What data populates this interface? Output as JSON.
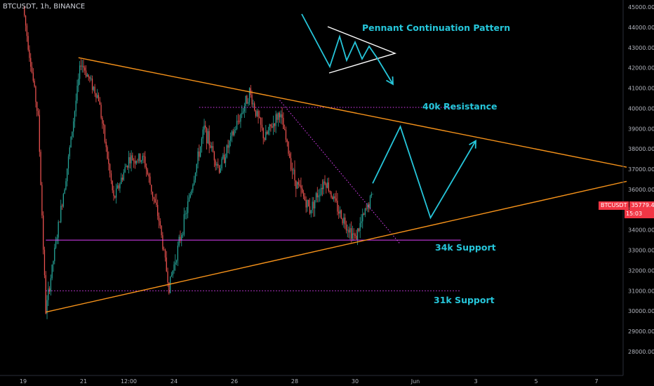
{
  "header": {
    "symbol_line": "BTCUSDT, 1h, BINANCE"
  },
  "price_tag": {
    "symbol": "BTCUSDT",
    "price": "35779.40",
    "countdown": "15:03"
  },
  "colors": {
    "background": "#000000",
    "up_candle": "#26a69a",
    "down_candle": "#ef5350",
    "trendline": "#f7931a",
    "resistance": "#e040fb",
    "projection": "#26c6da",
    "pattern_icon": "#ffffff",
    "annotation_text": "#26c6da"
  },
  "annotations": {
    "pennant": "Pennant Continuation Pattern",
    "resistance_40k": "40k Resistance",
    "support_34k": "34k Support",
    "support_31k": "31k Support"
  },
  "chart_data": {
    "type": "candlestick",
    "title": "",
    "symbol": "BTCUSDT",
    "interval": "1h",
    "exchange": "BINANCE",
    "last_price": 35779.4,
    "ylim": [
      28000,
      45400
    ],
    "y_ticks": [
      "45000.00",
      "44000.00",
      "43000.00",
      "42000.00",
      "41000.00",
      "40000.00",
      "39000.00",
      "38000.00",
      "37000.00",
      "36000.00",
      "35000.00",
      "34000.00",
      "33000.00",
      "32000.00",
      "31000.00",
      "30000.00",
      "29000.00",
      "28000.00"
    ],
    "x_ticks": [
      "19",
      "21",
      "12:00",
      "24",
      "26",
      "28",
      "30",
      "Jun",
      "3",
      "5",
      "7"
    ],
    "grid": false,
    "approx_path": [
      {
        "t": "2021-05-19 00:00",
        "price": 45000
      },
      {
        "t": "2021-05-19 12:00",
        "price": 39500
      },
      {
        "t": "2021-05-19 18:00",
        "price": 30000
      },
      {
        "t": "2021-05-20 12:00",
        "price": 37500
      },
      {
        "t": "2021-05-20 22:00",
        "price": 42300
      },
      {
        "t": "2021-05-21 12:00",
        "price": 40500
      },
      {
        "t": "2021-05-22 00:00",
        "price": 35500
      },
      {
        "t": "2021-05-22 12:00",
        "price": 37500
      },
      {
        "t": "2021-05-23 00:00",
        "price": 37500
      },
      {
        "t": "2021-05-23 12:00",
        "price": 34500
      },
      {
        "t": "2021-05-23 20:00",
        "price": 31200
      },
      {
        "t": "2021-05-24 12:00",
        "price": 35500
      },
      {
        "t": "2021-05-25 00:00",
        "price": 39000
      },
      {
        "t": "2021-05-25 12:00",
        "price": 37000
      },
      {
        "t": "2021-05-26 12:00",
        "price": 40800
      },
      {
        "t": "2021-05-27 00:00",
        "price": 38500
      },
      {
        "t": "2021-05-27 12:00",
        "price": 39800
      },
      {
        "t": "2021-05-28 00:00",
        "price": 36500
      },
      {
        "t": "2021-05-28 12:00",
        "price": 35000
      },
      {
        "t": "2021-05-29 00:00",
        "price": 36500
      },
      {
        "t": "2021-05-29 12:00",
        "price": 34800
      },
      {
        "t": "2021-05-30 00:00",
        "price": 33600
      },
      {
        "t": "2021-05-30 14:00",
        "price": 35779.4
      }
    ],
    "levels": [
      {
        "name": "40k Resistance",
        "price": 40050,
        "style": "dotted"
      },
      {
        "name": "34k Support",
        "price": 33500,
        "style": "solid"
      },
      {
        "name": "31k Support",
        "price": 31000,
        "style": "dotted"
      }
    ],
    "trendlines": [
      {
        "name": "upper",
        "from": {
          "t": "2021-05-20 20:00",
          "price": 42500
        },
        "to": {
          "t": "2021-06-08 00:00",
          "price": 37100
        }
      },
      {
        "name": "lower",
        "from": {
          "t": "2021-05-19 18:00",
          "price": 29950
        },
        "to": {
          "t": "2021-06-08 00:00",
          "price": 36400
        }
      }
    ],
    "projection": [
      {
        "t": "2021-05-30 14:00",
        "price": 36300
      },
      {
        "t": "2021-05-31 12:00",
        "price": 39100
      },
      {
        "t": "2021-06-01 12:00",
        "price": 34600
      },
      {
        "t": "2021-06-03 00:00",
        "price": 38400
      }
    ]
  }
}
